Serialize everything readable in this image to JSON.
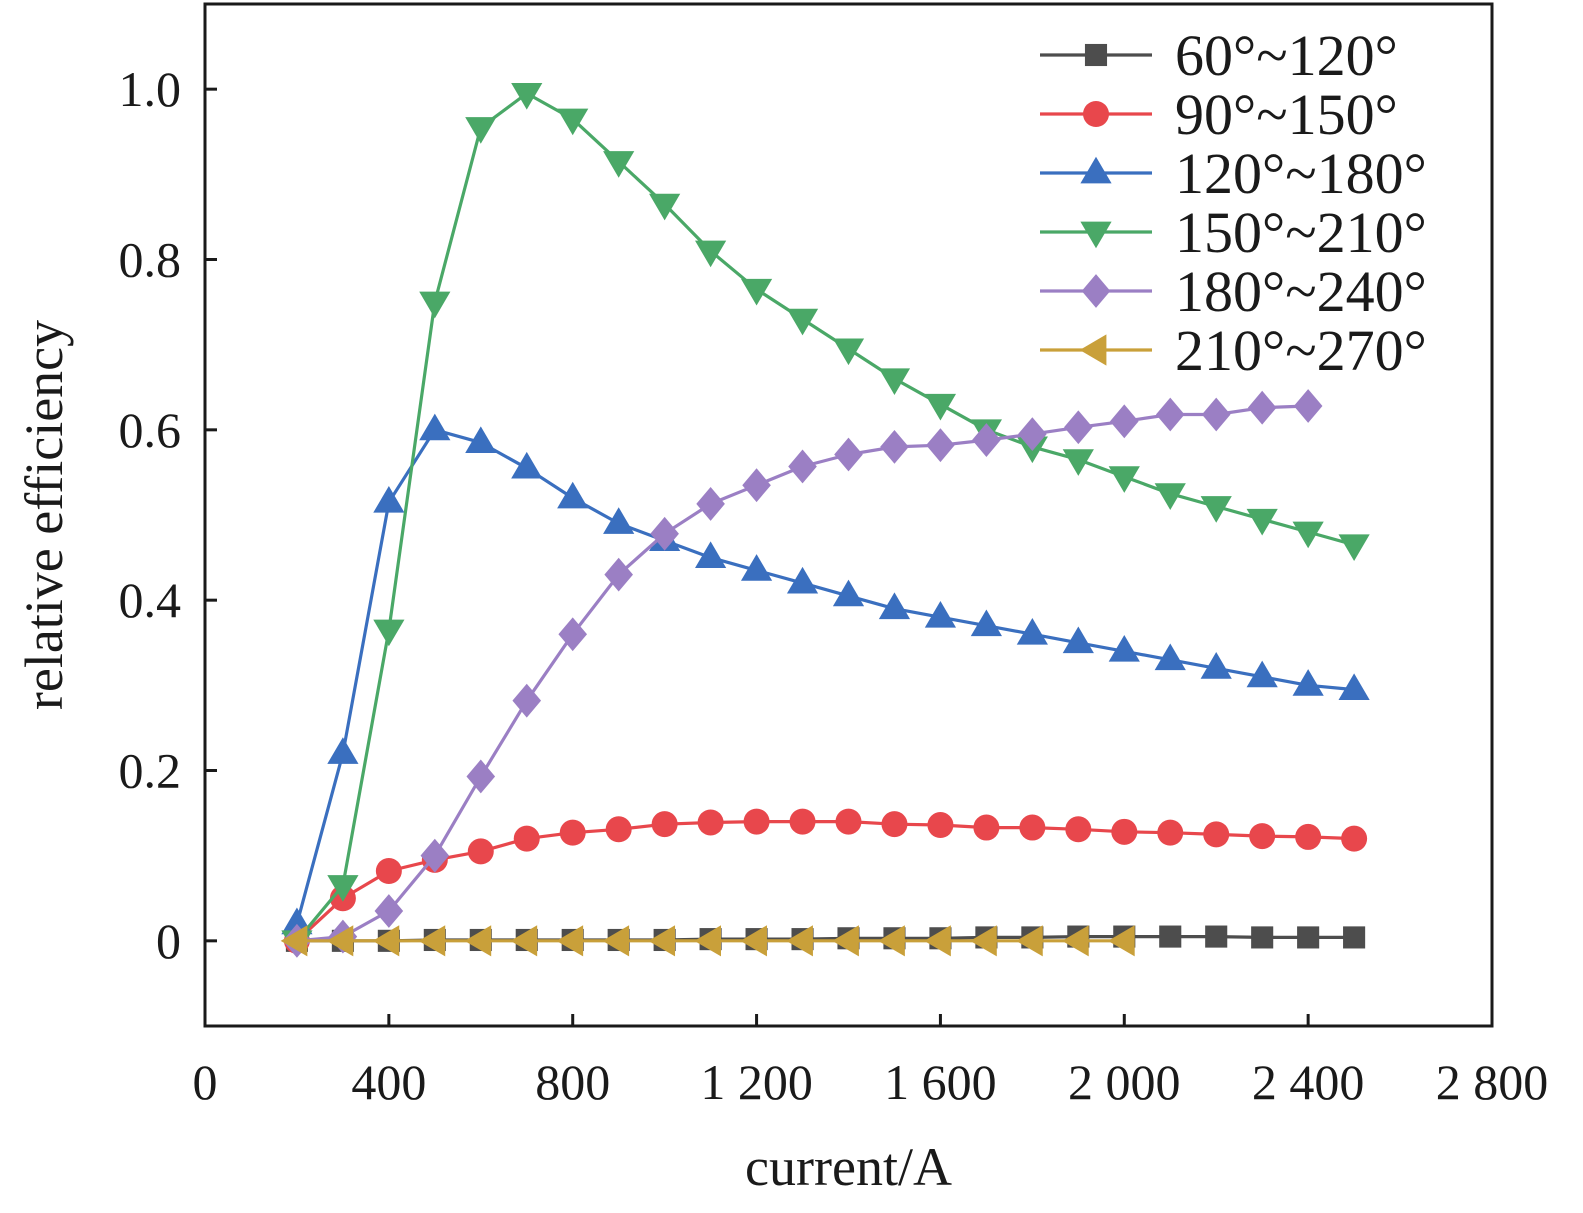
{
  "chart_data": {
    "type": "line",
    "xlabel": "current/A",
    "ylabel": "relative efficiency",
    "xlim": [
      0,
      2800
    ],
    "ylim": [
      -0.1,
      1.1
    ],
    "x_ticks": [
      0,
      400,
      800,
      1200,
      1600,
      2000,
      2400,
      2800
    ],
    "x_tick_labels": [
      "0",
      "400",
      "800",
      "1 200",
      "1 600",
      "2 000",
      "2 400",
      "2 800"
    ],
    "y_ticks": [
      0,
      0.2,
      0.4,
      0.6,
      0.8,
      1.0
    ],
    "y_tick_labels": [
      "0",
      "0.2",
      "0.4",
      "0.6",
      "0.8",
      "1.0"
    ],
    "grid": false,
    "legend_position": "top-right",
    "series": [
      {
        "name": "60°~120°",
        "color": "#4d4d4d",
        "marker": "square",
        "x": [
          200,
          300,
          400,
          500,
          600,
          700,
          800,
          900,
          1000,
          1100,
          1200,
          1300,
          1400,
          1500,
          1600,
          1700,
          1800,
          1900,
          2000,
          2100,
          2200,
          2300,
          2400,
          2500
        ],
        "y": [
          0,
          0,
          0,
          0.001,
          0.001,
          0.001,
          0.001,
          0.001,
          0.001,
          0.002,
          0.002,
          0.002,
          0.003,
          0.003,
          0.003,
          0.004,
          0.004,
          0.005,
          0.005,
          0.005,
          0.005,
          0.004,
          0.004,
          0.004
        ]
      },
      {
        "name": "90°~150°",
        "color": "#e8474c",
        "marker": "circle",
        "x": [
          200,
          300,
          400,
          500,
          600,
          700,
          800,
          900,
          1000,
          1100,
          1200,
          1300,
          1400,
          1500,
          1600,
          1700,
          1800,
          1900,
          2000,
          2100,
          2200,
          2300,
          2400,
          2500
        ],
        "y": [
          0,
          0.05,
          0.082,
          0.095,
          0.105,
          0.12,
          0.127,
          0.131,
          0.137,
          0.139,
          0.14,
          0.14,
          0.14,
          0.137,
          0.136,
          0.133,
          0.133,
          0.131,
          0.128,
          0.127,
          0.125,
          0.123,
          0.122,
          0.12
        ]
      },
      {
        "name": "120°~180°",
        "color": "#3a6fbf",
        "marker": "triangle-up",
        "x": [
          200,
          300,
          400,
          500,
          600,
          700,
          800,
          900,
          1000,
          1100,
          1200,
          1300,
          1400,
          1500,
          1600,
          1700,
          1800,
          1900,
          2000,
          2100,
          2200,
          2300,
          2400,
          2500
        ],
        "y": [
          0.02,
          0.22,
          0.515,
          0.6,
          0.585,
          0.555,
          0.52,
          0.49,
          0.47,
          0.45,
          0.435,
          0.42,
          0.405,
          0.39,
          0.38,
          0.37,
          0.36,
          0.35,
          0.34,
          0.33,
          0.32,
          0.31,
          0.3,
          0.295
        ]
      },
      {
        "name": "150°~210°",
        "color": "#4aa867",
        "marker": "triangle-down",
        "x": [
          200,
          300,
          400,
          500,
          600,
          700,
          800,
          900,
          1000,
          1100,
          1200,
          1300,
          1400,
          1500,
          1600,
          1700,
          1800,
          1900,
          2000,
          2100,
          2200,
          2300,
          2400,
          2500
        ],
        "y": [
          0,
          0.065,
          0.365,
          0.75,
          0.955,
          0.995,
          0.965,
          0.915,
          0.865,
          0.81,
          0.765,
          0.73,
          0.695,
          0.66,
          0.63,
          0.6,
          0.58,
          0.565,
          0.545,
          0.525,
          0.51,
          0.495,
          0.48,
          0.465
        ]
      },
      {
        "name": "180°~240°",
        "color": "#9b7fc4",
        "marker": "diamond",
        "x": [
          200,
          300,
          400,
          500,
          600,
          700,
          800,
          900,
          1000,
          1100,
          1200,
          1300,
          1400,
          1500,
          1600,
          1700,
          1800,
          1900,
          2000,
          2100,
          2200,
          2300,
          2400
        ],
        "y": [
          0,
          0.005,
          0.035,
          0.1,
          0.193,
          0.282,
          0.36,
          0.43,
          0.478,
          0.513,
          0.535,
          0.557,
          0.571,
          0.58,
          0.582,
          0.588,
          0.595,
          0.603,
          0.61,
          0.618,
          0.618,
          0.626,
          0.628
        ]
      },
      {
        "name": "210°~270°",
        "color": "#c9a03a",
        "marker": "triangle-left",
        "x": [
          200,
          300,
          400,
          500,
          600,
          700,
          800,
          900,
          1000,
          1100,
          1200,
          1300,
          1400,
          1500,
          1600,
          1700,
          1800,
          1900,
          2000
        ],
        "y": [
          0,
          0,
          0,
          0,
          0,
          0,
          0,
          0,
          0,
          0,
          0,
          0,
          0,
          0,
          0,
          0,
          0,
          0,
          0
        ]
      }
    ]
  }
}
